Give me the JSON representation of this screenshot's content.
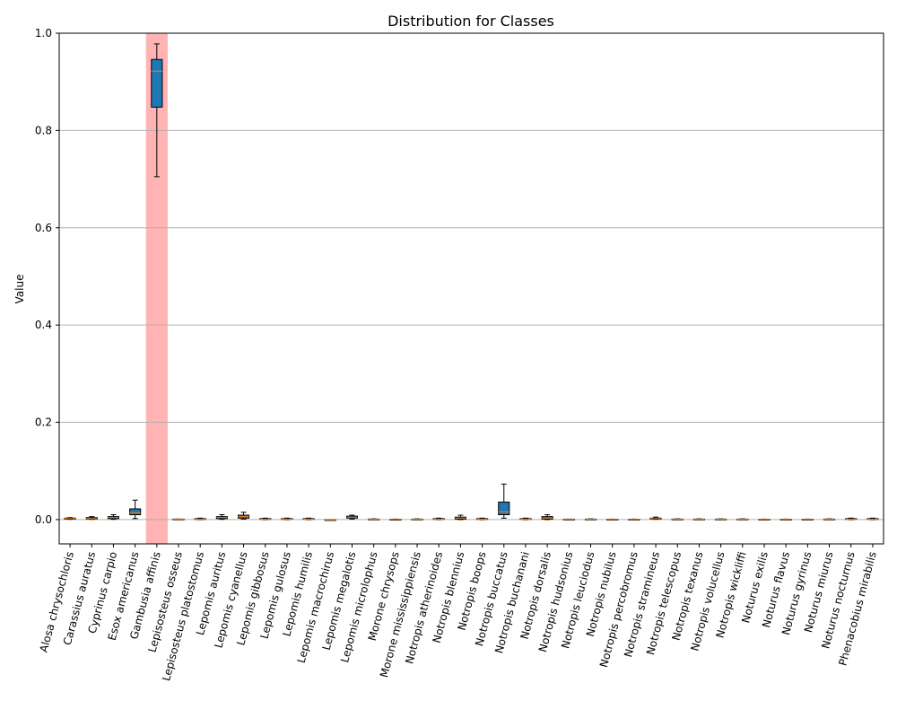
{
  "chart_data": {
    "type": "box",
    "title": "Distribution for Classes",
    "xlabel": "",
    "ylabel": "Value",
    "ylim": [
      -0.05,
      1.0
    ],
    "yticks": [
      0.0,
      0.2,
      0.4,
      0.6,
      0.8,
      1.0
    ],
    "ytick_labels": [
      "0.0",
      "0.2",
      "0.4",
      "0.6",
      "0.8",
      "1.0"
    ],
    "grid": "horizontal",
    "highlight_category": "Gambusia affinis",
    "colors": {
      "box_fill": "#1f77b4",
      "median": "#ff7f0e",
      "highlight": "#ffb3b3",
      "grid": "#b0b0b0"
    },
    "categories": [
      "Alosa chrysochloris",
      "Carassius auratus",
      "Cyprinus carpio",
      "Esox americanus",
      "Gambusia affinis",
      "Lepisosteus osseus",
      "Lepisosteus platostomus",
      "Lepomis auritus",
      "Lepomis cyanellus",
      "Lepomis gibbosus",
      "Lepomis gulosus",
      "Lepomis humilis",
      "Lepomis macrochirus",
      "Lepomis megalotis",
      "Lepomis microlophus",
      "Morone chrysops",
      "Morone mississippiensis",
      "Notropis atherinoides",
      "Notropis blennius",
      "Notropis boops",
      "Notropis buccatus",
      "Notropis buchanani",
      "Notropis dorsalis",
      "Notropis hudsonius",
      "Notropis leuciodus",
      "Notropis nubilus",
      "Notropis percobromus",
      "Notropis stramineus",
      "Notropis telescopus",
      "Notropis texanus",
      "Notropis volucellus",
      "Notropis wickliffi",
      "Noturus exilis",
      "Noturus flavus",
      "Noturus gyrinus",
      "Noturus miurus",
      "Noturus nocturnus",
      "Phenacobius mirabilis"
    ],
    "boxes": [
      {
        "whislo": 0.0005,
        "q1": 0.001,
        "med": 0.002,
        "q3": 0.003,
        "whishi": 0.004
      },
      {
        "whislo": 0.0005,
        "q1": 0.001,
        "med": 0.002,
        "q3": 0.004,
        "whishi": 0.006
      },
      {
        "whislo": 0.0005,
        "q1": 0.002,
        "med": 0.004,
        "q3": 0.006,
        "whishi": 0.01
      },
      {
        "whislo": 0.002,
        "q1": 0.01,
        "med": 0.014,
        "q3": 0.022,
        "whishi": 0.04
      },
      {
        "whislo": 0.705,
        "q1": 0.848,
        "med": 0.922,
        "q3": 0.946,
        "whishi": 0.978
      },
      {
        "whislo": 0.0,
        "q1": 0.0,
        "med": 0.0005,
        "q3": 0.001,
        "whishi": 0.001
      },
      {
        "whislo": 0.0,
        "q1": 0.0005,
        "med": 0.001,
        "q3": 0.002,
        "whishi": 0.003
      },
      {
        "whislo": 0.0005,
        "q1": 0.002,
        "med": 0.004,
        "q3": 0.006,
        "whishi": 0.01
      },
      {
        "whislo": 0.001,
        "q1": 0.003,
        "med": 0.006,
        "q3": 0.009,
        "whishi": 0.015
      },
      {
        "whislo": 0.0,
        "q1": 0.0005,
        "med": 0.001,
        "q3": 0.002,
        "whishi": 0.003
      },
      {
        "whislo": 0.0,
        "q1": 0.0005,
        "med": 0.001,
        "q3": 0.002,
        "whishi": 0.003
      },
      {
        "whislo": 0.0,
        "q1": 0.0005,
        "med": 0.001,
        "q3": 0.002,
        "whishi": 0.003
      },
      {
        "whislo": -0.001,
        "q1": -0.0008,
        "med": -0.0005,
        "q3": -0.0003,
        "whishi": -0.0001
      },
      {
        "whislo": 0.001,
        "q1": 0.003,
        "med": 0.005,
        "q3": 0.007,
        "whishi": 0.009
      },
      {
        "whislo": 0.0,
        "q1": 0.0003,
        "med": 0.0006,
        "q3": 0.001,
        "whishi": 0.0015
      },
      {
        "whislo": 0.0,
        "q1": 0.0,
        "med": 0.0003,
        "q3": 0.0005,
        "whishi": 0.001
      },
      {
        "whislo": 0.0,
        "q1": 0.0003,
        "med": 0.0006,
        "q3": 0.001,
        "whishi": 0.0015
      },
      {
        "whislo": 0.0,
        "q1": 0.0005,
        "med": 0.001,
        "q3": 0.002,
        "whishi": 0.003
      },
      {
        "whislo": 0.0,
        "q1": 0.001,
        "med": 0.003,
        "q3": 0.005,
        "whishi": 0.009
      },
      {
        "whislo": 0.0,
        "q1": 0.0005,
        "med": 0.001,
        "q3": 0.002,
        "whishi": 0.003
      },
      {
        "whislo": 0.003,
        "q1": 0.01,
        "med": 0.016,
        "q3": 0.036,
        "whishi": 0.073
      },
      {
        "whislo": 0.0,
        "q1": 0.0005,
        "med": 0.001,
        "q3": 0.002,
        "whishi": 0.003
      },
      {
        "whislo": 0.0,
        "q1": 0.001,
        "med": 0.003,
        "q3": 0.006,
        "whishi": 0.01
      },
      {
        "whislo": 0.0,
        "q1": 0.0002,
        "med": 0.0005,
        "q3": 0.0008,
        "whishi": 0.001
      },
      {
        "whislo": 0.0,
        "q1": 0.0003,
        "med": 0.0006,
        "q3": 0.001,
        "whishi": 0.0015
      },
      {
        "whislo": 0.0,
        "q1": 0.0002,
        "med": 0.0004,
        "q3": 0.0007,
        "whishi": 0.001
      },
      {
        "whislo": 0.0,
        "q1": 0.0002,
        "med": 0.0004,
        "q3": 0.0007,
        "whishi": 0.001
      },
      {
        "whislo": 0.0005,
        "q1": 0.001,
        "med": 0.002,
        "q3": 0.003,
        "whishi": 0.005
      },
      {
        "whislo": 0.0,
        "q1": 0.0003,
        "med": 0.0006,
        "q3": 0.001,
        "whishi": 0.0015
      },
      {
        "whislo": 0.0,
        "q1": 0.0003,
        "med": 0.0006,
        "q3": 0.001,
        "whishi": 0.0015
      },
      {
        "whislo": 0.0,
        "q1": 0.0003,
        "med": 0.0006,
        "q3": 0.001,
        "whishi": 0.0015
      },
      {
        "whislo": 0.0,
        "q1": 0.0003,
        "med": 0.0006,
        "q3": 0.001,
        "whishi": 0.0015
      },
      {
        "whislo": 0.0,
        "q1": 0.0002,
        "med": 0.0004,
        "q3": 0.0007,
        "whishi": 0.001
      },
      {
        "whislo": 0.0,
        "q1": 0.0002,
        "med": 0.0004,
        "q3": 0.0007,
        "whishi": 0.001
      },
      {
        "whislo": 0.0,
        "q1": 0.0002,
        "med": 0.0004,
        "q3": 0.0007,
        "whishi": 0.001
      },
      {
        "whislo": 0.0,
        "q1": 0.0003,
        "med": 0.0006,
        "q3": 0.001,
        "whishi": 0.0015
      },
      {
        "whislo": 0.0,
        "q1": 0.0005,
        "med": 0.001,
        "q3": 0.002,
        "whishi": 0.003
      },
      {
        "whislo": 0.0,
        "q1": 0.0005,
        "med": 0.001,
        "q3": 0.002,
        "whishi": 0.003
      }
    ]
  }
}
